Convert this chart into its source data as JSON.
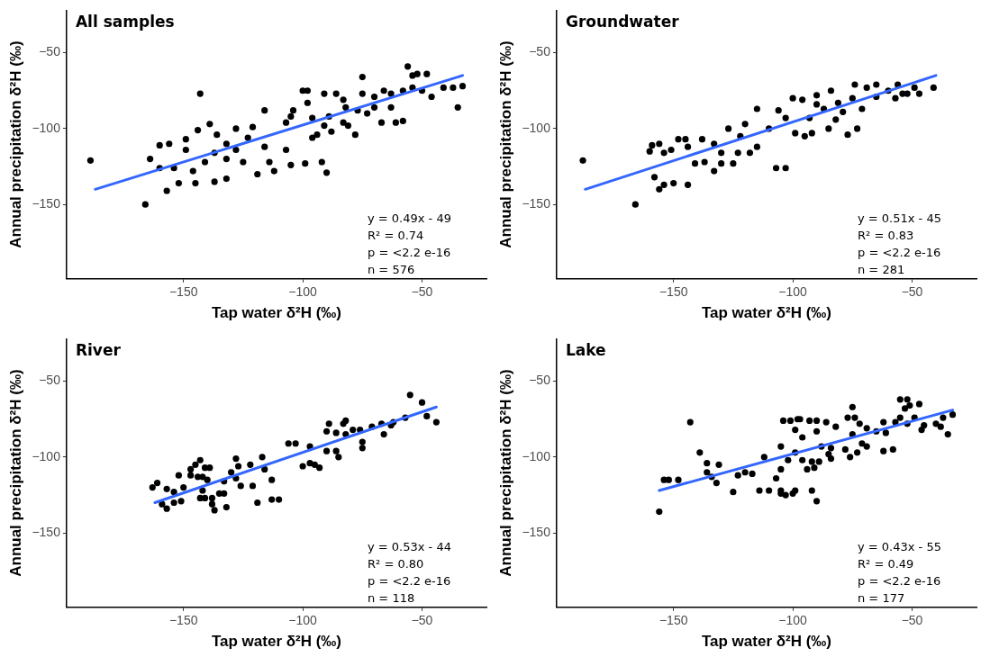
{
  "chart_data": [
    {
      "type": "scatter",
      "title": "All samples",
      "xlabel": "Tap water δ²H (‰)",
      "ylabel": "Annual precipitation δ²H (‰)",
      "xlim": [
        -199,
        -23
      ],
      "ylim": [
        -199,
        -22
      ],
      "xticks": [
        -150,
        -100,
        -50
      ],
      "yticks": [
        -150,
        -100,
        -50
      ],
      "grid": false,
      "legend": false,
      "marker": "circle",
      "annotations": [
        "y = 0.49x - 49",
        "R² = 0.74",
        "p = <2.2 e-16",
        "n = 576"
      ],
      "series": [
        {
          "color": "#000000",
          "x": [
            -189,
            -166,
            -143,
            -157,
            -164,
            -160,
            -156,
            -149,
            -144,
            -139,
            -145,
            -137,
            -132,
            -152,
            -136,
            -128,
            -121,
            -119,
            -116,
            -114,
            -112,
            -107,
            -107,
            -105,
            -100,
            -98,
            -99,
            -92,
            -90,
            -94,
            -91,
            -89,
            -86,
            -82,
            -83,
            -78,
            -75,
            -75,
            -73,
            -70,
            -67,
            -63,
            -61,
            -58,
            -56,
            -54,
            -52,
            -48,
            -46,
            -41,
            -37,
            -33,
            -35,
            -50,
            -58,
            -66,
            -91,
            -104,
            -105,
            -96,
            -88,
            -81,
            -128,
            -132,
            -123,
            -116,
            -141,
            -146,
            -154,
            -160,
            -149,
            -137,
            -132,
            -125,
            -96,
            -77,
            -63,
            -54,
            -70,
            -83,
            -98
          ],
          "values": [
            -121,
            -150,
            -77,
            -141,
            -120,
            -111,
            -110,
            -107,
            -101,
            -97,
            -136,
            -135,
            -133,
            -136,
            -104,
            -100,
            -99,
            -130,
            -88,
            -122,
            -128,
            -114,
            -96,
            -124,
            -75,
            -75,
            -123,
            -122,
            -129,
            -104,
            -98,
            -92,
            -77,
            -86,
            -96,
            -104,
            -66,
            -77,
            -90,
            -86,
            -96,
            -77,
            -96,
            -95,
            -59,
            -65,
            -64,
            -64,
            -79,
            -73,
            -73,
            -72,
            -86,
            -75,
            -75,
            -75,
            -77,
            -88,
            -92,
            -106,
            -102,
            -98,
            -114,
            -110,
            -106,
            -112,
            -122,
            -128,
            -126,
            -126,
            -114,
            -116,
            -120,
            -122,
            -93,
            -88,
            -86,
            -73,
            -79,
            -81,
            -83
          ]
        },
        {
          "type": "line",
          "marker": "none",
          "color": "#3366ff",
          "x": [
            -187,
            -33
          ],
          "values": [
            -140,
            -65
          ]
        }
      ]
    },
    {
      "type": "scatter",
      "title": "Groundwater",
      "xlabel": "Tap water δ²H (‰)",
      "ylabel": "Annual precipitation δ²H (‰)",
      "xlim": [
        -199,
        -23
      ],
      "ylim": [
        -199,
        -22
      ],
      "xticks": [
        -150,
        -100,
        -50
      ],
      "yticks": [
        -150,
        -100,
        -50
      ],
      "grid": false,
      "legend": false,
      "marker": "circle",
      "annotations": [
        "y = 0.51x - 45",
        "R² = 0.83",
        "p = <2.2 e-16",
        "n = 281"
      ],
      "series": [
        {
          "color": "#000000",
          "x": [
            -188,
            -166,
            -156,
            -158,
            -160,
            -159,
            -156,
            -154,
            -151,
            -154,
            -150,
            -144,
            -148,
            -145,
            -144,
            -141,
            -138,
            -137,
            -133,
            -133,
            -130,
            -130,
            -127,
            -125,
            -123,
            -122,
            -120,
            -118,
            -115,
            -115,
            -107,
            -103,
            -110,
            -106,
            -103,
            -100,
            -96,
            -99,
            -95,
            -92,
            -93,
            -90,
            -87,
            -85,
            -84,
            -82,
            -79,
            -77,
            -74,
            -73,
            -71,
            -69,
            -65,
            -65,
            -60,
            -56,
            -57,
            -54,
            -52,
            -49,
            -47,
            -41,
            -90,
            -75,
            -81
          ],
          "values": [
            -121,
            -150,
            -140,
            -132,
            -115,
            -111,
            -110,
            -116,
            -114,
            -137,
            -136,
            -137,
            -107,
            -107,
            -112,
            -123,
            -107,
            -122,
            -128,
            -110,
            -116,
            -123,
            -100,
            -123,
            -116,
            -105,
            -97,
            -116,
            -87,
            -112,
            -126,
            -126,
            -100,
            -88,
            -93,
            -80,
            -81,
            -103,
            -105,
            -103,
            -93,
            -78,
            -87,
            -100,
            -75,
            -94,
            -89,
            -104,
            -71,
            -100,
            -87,
            -73,
            -79,
            -71,
            -75,
            -71,
            -80,
            -77,
            -77,
            -73,
            -77,
            -73,
            -84,
            -80,
            -83
          ]
        },
        {
          "type": "line",
          "marker": "none",
          "color": "#3366ff",
          "x": [
            -187,
            -40
          ],
          "values": [
            -140,
            -65
          ]
        }
      ]
    },
    {
      "type": "scatter",
      "title": "River",
      "xlabel": "Tap water δ²H (‰)",
      "ylabel": "Annual precipitation δ²H (‰)",
      "xlim": [
        -199,
        -23
      ],
      "ylim": [
        -199,
        -22
      ],
      "xticks": [
        -150,
        -100,
        -50
      ],
      "yticks": [
        -150,
        -100,
        -50
      ],
      "grid": false,
      "legend": false,
      "marker": "circle",
      "annotations": [
        "y = 0.53x - 44",
        "R² = 0.80",
        "p = <2.2 e-16",
        "n = 118"
      ],
      "series": [
        {
          "color": "#000000",
          "x": [
            -163,
            -161,
            -157,
            -159,
            -157,
            -154,
            -152,
            -150,
            -154,
            -151,
            -147,
            -147,
            -145,
            -143,
            -144,
            -142,
            -141,
            -143,
            -141,
            -142,
            -139,
            -138,
            -138,
            -137,
            -140,
            -135,
            -133,
            -132,
            -133,
            -130,
            -128,
            -127,
            -126,
            -128,
            -122,
            -121,
            -119,
            -117,
            -116,
            -113,
            -113,
            -110,
            -106,
            -103,
            -100,
            -97,
            -97,
            -95,
            -93,
            -90,
            -89,
            -90,
            -86,
            -85,
            -86,
            -83,
            -82,
            -82,
            -79,
            -75,
            -75,
            -76,
            -71,
            -66,
            -67,
            -63,
            -62,
            -57,
            -55,
            -50,
            -48,
            -44
          ],
          "values": [
            -120,
            -117,
            -134,
            -131,
            -121,
            -123,
            -112,
            -120,
            -130,
            -129,
            -108,
            -112,
            -105,
            -102,
            -113,
            -113,
            -107,
            -127,
            -127,
            -122,
            -107,
            -127,
            -131,
            -135,
            -115,
            -124,
            -124,
            -133,
            -116,
            -110,
            -101,
            -106,
            -119,
            -114,
            -105,
            -119,
            -130,
            -100,
            -108,
            -115,
            -128,
            -128,
            -91,
            -91,
            -106,
            -93,
            -104,
            -105,
            -107,
            -83,
            -78,
            -96,
            -96,
            -100,
            -84,
            -78,
            -76,
            -85,
            -82,
            -90,
            -94,
            -82,
            -80,
            -85,
            -78,
            -79,
            -77,
            -74,
            -59,
            -64,
            -73,
            -77
          ]
        },
        {
          "type": "line",
          "marker": "none",
          "color": "#3366ff",
          "x": [
            -162,
            -44
          ],
          "values": [
            -130,
            -67
          ]
        }
      ]
    },
    {
      "type": "scatter",
      "title": "Lake",
      "xlabel": "Tap water δ²H (‰)",
      "ylabel": "Annual precipitation δ²H (‰)",
      "xlim": [
        -199,
        -23
      ],
      "ylim": [
        -199,
        -22
      ],
      "xticks": [
        -150,
        -100,
        -50
      ],
      "yticks": [
        -150,
        -100,
        -50
      ],
      "grid": false,
      "legend": false,
      "marker": "circle",
      "annotations": [
        "y = 0.43x - 55",
        "R² = 0.49",
        "p = <2.2 e-16",
        "n = 177"
      ],
      "series": [
        {
          "color": "#000000",
          "x": [
            -156,
            -154,
            -152,
            -148,
            -143,
            -139,
            -136,
            -136,
            -134,
            -132,
            -131,
            -125,
            -123,
            -120,
            -117,
            -114,
            -112,
            -110,
            -107,
            -105,
            -105,
            -104,
            -105,
            -105,
            -103,
            -102,
            -101,
            -99,
            -98,
            -100,
            -99,
            -99,
            -97,
            -96,
            -96,
            -94,
            -93,
            -92,
            -92,
            -91,
            -90,
            -90,
            -90,
            -89,
            -88,
            -86,
            -85,
            -84,
            -84,
            -82,
            -78,
            -77,
            -76,
            -75,
            -75,
            -74,
            -73,
            -72,
            -71,
            -69,
            -69,
            -65,
            -62,
            -62,
            -61,
            -58,
            -57,
            -55,
            -55,
            -53,
            -52,
            -51,
            -52,
            -49,
            -47,
            -46,
            -45,
            -40,
            -38,
            -37,
            -35,
            -33
          ],
          "values": [
            -136,
            -115,
            -115,
            -115,
            -77,
            -97,
            -104,
            -110,
            -113,
            -117,
            -105,
            -123,
            -112,
            -110,
            -111,
            -122,
            -100,
            -122,
            -114,
            -93,
            -108,
            -76,
            -122,
            -124,
            -125,
            -102,
            -76,
            -82,
            -75,
            -124,
            -122,
            -97,
            -75,
            -102,
            -87,
            -108,
            -76,
            -103,
            -122,
            -107,
            -83,
            -129,
            -76,
            -103,
            -93,
            -77,
            -98,
            -94,
            -101,
            -80,
            -95,
            -74,
            -100,
            -67,
            -85,
            -74,
            -97,
            -78,
            -91,
            -93,
            -81,
            -83,
            -96,
            -77,
            -84,
            -95,
            -77,
            -62,
            -74,
            -68,
            -62,
            -66,
            -78,
            -74,
            -65,
            -82,
            -79,
            -78,
            -80,
            -74,
            -85,
            -72
          ]
        },
        {
          "type": "line",
          "marker": "none",
          "color": "#3366ff",
          "x": [
            -156,
            -33
          ],
          "values": [
            -122,
            -69
          ]
        }
      ]
    }
  ]
}
